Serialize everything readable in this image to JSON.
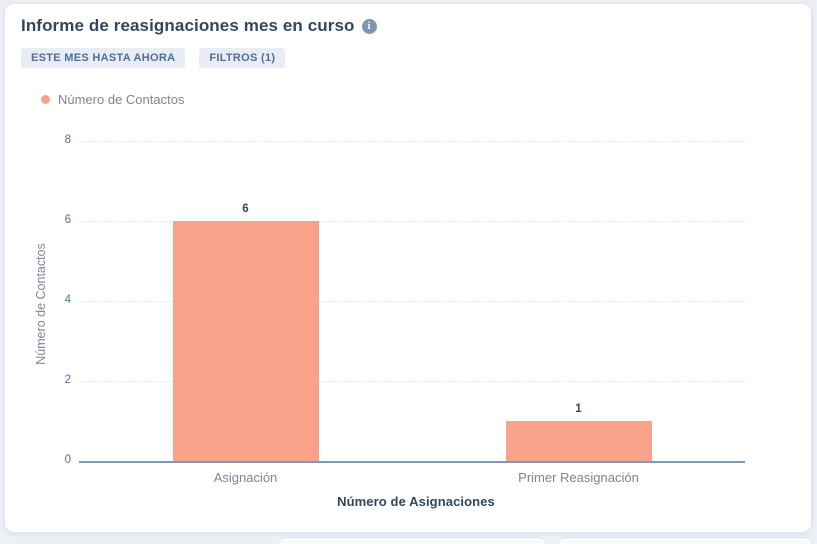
{
  "header": {
    "title": "Informe de reasignaciones mes en curso"
  },
  "badges": {
    "date_range": "ESTE MES HASTA AHORA",
    "filters": "FILTROS (1)"
  },
  "legend": {
    "label": "Número de Contactos",
    "color": "#f8a28a"
  },
  "chart_data": {
    "type": "bar",
    "title": "Informe de reasignaciones mes en curso",
    "series_name": "Número de Contactos",
    "categories": [
      "Asignación",
      "Primer Reasignación"
    ],
    "values": [
      6,
      1
    ],
    "xlabel": "Número de Asignaciones",
    "ylabel": "Número de Contactos",
    "ylim": [
      0,
      8
    ],
    "yticks": [
      0,
      2,
      4,
      6,
      8
    ],
    "bar_color": "#f8a28a",
    "grid": "horizontal-dashed",
    "legend_position": "top-left"
  },
  "colors": {
    "accent_bar": "#f8a28a",
    "heading": "#33475b",
    "muted_text": "#7a8699",
    "tick_text": "#516f90",
    "baseline": "#8198ba",
    "gridline": "#e3e7f0",
    "badge_bg": "#e8edf5",
    "badge_text": "#4f6e90",
    "page_bg": "#edf1f7",
    "card_bg": "#ffffff"
  }
}
